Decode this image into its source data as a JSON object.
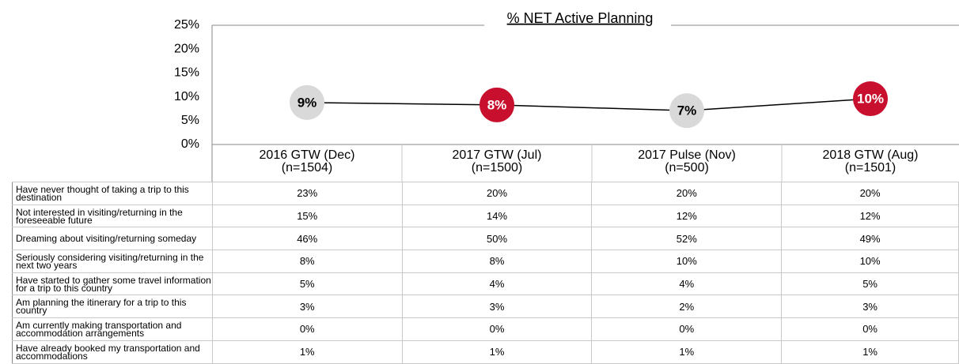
{
  "chart_data": {
    "type": "line",
    "title": "% NET Active Planning",
    "categories": [
      "2016 GTW (Dec)",
      "2017 GTW (Jul)",
      "2017 Pulse (Nov)",
      "2018 GTW (Aug)"
    ],
    "category_sublabels": [
      "(n=1504)",
      "(n=1500)",
      "(n=500)",
      "(n=1501)"
    ],
    "series": [
      {
        "color": "#000000",
        "values": [
          8.8,
          8.3,
          7.1,
          9.6
        ],
        "value_labels": [
          "9%",
          "8%",
          "7%",
          "10%"
        ],
        "point_colors": [
          "#d9d9d9",
          "#c8102e",
          "#d9d9d9",
          "#c8102e"
        ]
      }
    ],
    "ylim": [
      0,
      25
    ],
    "yticks": [
      {
        "value": 0,
        "label": "0%"
      },
      {
        "value": 5,
        "label": "5%"
      },
      {
        "value": 10,
        "label": "10%"
      },
      {
        "value": 15,
        "label": "15%"
      },
      {
        "value": 20,
        "label": "20%"
      },
      {
        "value": 25,
        "label": "25%"
      }
    ]
  },
  "table": {
    "rows": [
      {
        "label": "Have never thought of taking a trip to this destination",
        "values": [
          "23%",
          "20%",
          "20%",
          "20%"
        ]
      },
      {
        "label": "Not interested in visiting/returning in the foreseeable future",
        "values": [
          "15%",
          "14%",
          "12%",
          "12%"
        ]
      },
      {
        "label": "Dreaming about visiting/returning someday",
        "values": [
          "46%",
          "50%",
          "52%",
          "49%"
        ]
      },
      {
        "label": "Seriously considering visiting/returning in the next two years",
        "values": [
          "8%",
          "8%",
          "10%",
          "10%"
        ]
      },
      {
        "label": "Have started to gather some travel information for a trip to this country",
        "values": [
          "5%",
          "4%",
          "4%",
          "5%"
        ]
      },
      {
        "label": "Am planning the itinerary for a trip to this country",
        "values": [
          "3%",
          "3%",
          "2%",
          "3%"
        ]
      },
      {
        "label": "Am currently making transportation and accommodation arrangements",
        "values": [
          "0%",
          "0%",
          "0%",
          "0%"
        ]
      },
      {
        "label": "Have already booked my transportation and accommodations",
        "values": [
          "1%",
          "1%",
          "1%",
          "1%"
        ]
      }
    ]
  }
}
